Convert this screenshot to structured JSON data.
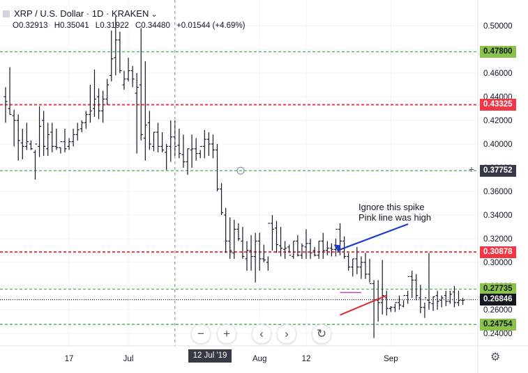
{
  "header": {
    "symbol": "XRP / U.S. Dollar · 1D · KRAKEN",
    "ohlc": [
      "O0.32913",
      "H0.35041",
      "L0.31922",
      "C0.34480",
      "+0.01544 (+4.69%)"
    ]
  },
  "annotation": {
    "line1": "Ignore this spike",
    "line2": "Pink line was high"
  },
  "toolbar": {
    "zoom_out": "−",
    "zoom_in": "+",
    "scroll_left": "‹",
    "scroll_right": "›",
    "reset": "↻"
  },
  "price_labels": [
    {
      "value": 0.478,
      "text": "0.47800",
      "bg": "#8bc34a",
      "fg": "#131722",
      "line": "#4caf50"
    },
    {
      "value": 0.43325,
      "text": "0.43325",
      "bg": "#f23645",
      "fg": "#ffffff",
      "line": "#f23645"
    },
    {
      "value": 0.37752,
      "text": "0.37752",
      "bg": "#363a45",
      "fg": "#ffffff",
      "line": "#4caf50"
    },
    {
      "value": 0.30878,
      "text": "0.30878",
      "bg": "#f23645",
      "fg": "#ffffff",
      "line": "#f23645"
    },
    {
      "value": 0.27735,
      "text": "0.27735",
      "bg": "#8bc34a",
      "fg": "#131722",
      "line": "#4caf50"
    },
    {
      "value": 0.26846,
      "text": "0.26846",
      "bg": "#131722",
      "fg": "#ffffff",
      "line": "#131722"
    },
    {
      "value": 0.24754,
      "text": "0.24754",
      "bg": "#8bc34a",
      "fg": "#131722",
      "line": "#4caf50"
    }
  ],
  "crosshair_date": "12 Jul '19",
  "chart_data": {
    "type": "ohlc",
    "title": "XRP / U.S. Dollar · 1D · KRAKEN",
    "ylim": [
      0.23,
      0.515
    ],
    "y_ticks": [
      0.24,
      0.26,
      0.28,
      0.3,
      0.32,
      0.34,
      0.36,
      0.38,
      0.4,
      0.42,
      0.44,
      0.46,
      0.48,
      0.5
    ],
    "y_tick_labels": [
      "0.24000",
      "0.26000",
      "0.28000",
      "0.30000",
      "0.32000",
      "0.34000",
      "0.36000",
      "0.38000",
      "0.40000",
      "0.42000",
      "0.44000",
      "0.46000",
      "0.48000",
      "0.50000"
    ],
    "x_tick_labels": [
      "17",
      "Jul",
      "Aug",
      "12",
      "Sep"
    ],
    "x_tick_dates": [
      "2019-06-17",
      "2019-07-01",
      "2019-08-01",
      "2019-08-12",
      "2019-09-01"
    ],
    "start_date": "2019-06-02",
    "highs": [
      0.448,
      0.465,
      0.429,
      0.425,
      0.413,
      0.418,
      0.403,
      0.395,
      0.432,
      0.428,
      0.418,
      0.418,
      0.413,
      0.397,
      0.413,
      0.405,
      0.413,
      0.418,
      0.42,
      0.428,
      0.45,
      0.463,
      0.447,
      0.445,
      0.455,
      0.496,
      0.508,
      0.495,
      0.462,
      0.473,
      0.466,
      0.46,
      0.498,
      0.47,
      0.428,
      0.41,
      0.418,
      0.41,
      0.4,
      0.42,
      0.42,
      0.413,
      0.408,
      0.396,
      0.408,
      0.405,
      0.395,
      0.412,
      0.41,
      0.408,
      0.4,
      0.367,
      0.346,
      0.338,
      0.336,
      0.333,
      0.33,
      0.318,
      0.323,
      0.325,
      0.325,
      0.315,
      0.305,
      0.34,
      0.335,
      0.33,
      0.318,
      0.315,
      0.318,
      0.323,
      0.316,
      0.328,
      0.32,
      0.313,
      0.318,
      0.325,
      0.318,
      0.316,
      0.32,
      0.333,
      0.322,
      0.308,
      0.303,
      0.313,
      0.305,
      0.308,
      0.303,
      0.285,
      0.285,
      0.302,
      0.276,
      0.263,
      0.265,
      0.272,
      0.268,
      0.276,
      0.293,
      0.29,
      0.281,
      0.266,
      0.308,
      0.271,
      0.276,
      0.272,
      0.276,
      0.276,
      0.28,
      0.276,
      0.27
    ],
    "lows": [
      0.418,
      0.425,
      0.398,
      0.386,
      0.387,
      0.395,
      0.395,
      0.37,
      0.389,
      0.39,
      0.39,
      0.393,
      0.395,
      0.392,
      0.393,
      0.395,
      0.398,
      0.403,
      0.41,
      0.413,
      0.418,
      0.423,
      0.421,
      0.418,
      0.433,
      0.453,
      0.458,
      0.46,
      0.446,
      0.453,
      0.448,
      0.392,
      0.403,
      0.386,
      0.395,
      0.394,
      0.393,
      0.393,
      0.378,
      0.385,
      0.39,
      0.388,
      0.38,
      0.374,
      0.38,
      0.386,
      0.388,
      0.388,
      0.39,
      0.388,
      0.36,
      0.34,
      0.308,
      0.303,
      0.303,
      0.318,
      0.303,
      0.293,
      0.293,
      0.283,
      0.293,
      0.3,
      0.293,
      0.31,
      0.308,
      0.305,
      0.303,
      0.308,
      0.303,
      0.305,
      0.303,
      0.303,
      0.303,
      0.305,
      0.303,
      0.303,
      0.306,
      0.305,
      0.305,
      0.306,
      0.303,
      0.293,
      0.288,
      0.29,
      0.286,
      0.286,
      0.283,
      0.236,
      0.25,
      0.256,
      0.255,
      0.258,
      0.258,
      0.26,
      0.262,
      0.265,
      0.27,
      0.268,
      0.257,
      0.253,
      0.26,
      0.259,
      0.26,
      0.262,
      0.263,
      0.265,
      0.262,
      0.263,
      0.264
    ],
    "opens": [
      0.44,
      0.43,
      0.424,
      0.42,
      0.401,
      0.398,
      0.4,
      0.393,
      0.398,
      0.42,
      0.396,
      0.41,
      0.398,
      0.397,
      0.402,
      0.398,
      0.402,
      0.408,
      0.413,
      0.418,
      0.425,
      0.43,
      0.44,
      0.428,
      0.438,
      0.458,
      0.473,
      0.488,
      0.45,
      0.455,
      0.462,
      0.443,
      0.45,
      0.405,
      0.418,
      0.398,
      0.41,
      0.398,
      0.393,
      0.398,
      0.406,
      0.399,
      0.391,
      0.385,
      0.395,
      0.396,
      0.392,
      0.398,
      0.404,
      0.4,
      0.395,
      0.362,
      0.34,
      0.318,
      0.308,
      0.328,
      0.318,
      0.303,
      0.31,
      0.305,
      0.318,
      0.303,
      0.3,
      0.333,
      0.329,
      0.314,
      0.311,
      0.313,
      0.305,
      0.318,
      0.306,
      0.313,
      0.316,
      0.31,
      0.306,
      0.318,
      0.31,
      0.312,
      0.311,
      0.328,
      0.318,
      0.305,
      0.296,
      0.303,
      0.296,
      0.3,
      0.29,
      0.282,
      0.268,
      0.266,
      0.27,
      0.261,
      0.262,
      0.266,
      0.263,
      0.272,
      0.288,
      0.285,
      0.27,
      0.262,
      0.268,
      0.265,
      0.272,
      0.268,
      0.272,
      0.267,
      0.275,
      0.266,
      0.268
    ],
    "closes": [
      0.436,
      0.425,
      0.42,
      0.403,
      0.398,
      0.402,
      0.396,
      0.4,
      0.415,
      0.398,
      0.408,
      0.398,
      0.397,
      0.402,
      0.396,
      0.402,
      0.408,
      0.412,
      0.418,
      0.425,
      0.428,
      0.438,
      0.428,
      0.438,
      0.45,
      0.472,
      0.488,
      0.462,
      0.455,
      0.462,
      0.455,
      0.448,
      0.408,
      0.416,
      0.4,
      0.41,
      0.398,
      0.395,
      0.398,
      0.406,
      0.398,
      0.392,
      0.385,
      0.396,
      0.396,
      0.392,
      0.398,
      0.404,
      0.4,
      0.395,
      0.362,
      0.342,
      0.318,
      0.31,
      0.328,
      0.32,
      0.305,
      0.31,
      0.305,
      0.318,
      0.303,
      0.302,
      0.333,
      0.328,
      0.315,
      0.312,
      0.312,
      0.306,
      0.318,
      0.306,
      0.314,
      0.316,
      0.308,
      0.306,
      0.318,
      0.31,
      0.312,
      0.311,
      0.328,
      0.318,
      0.305,
      0.296,
      0.303,
      0.296,
      0.3,
      0.29,
      0.282,
      0.268,
      0.266,
      0.272,
      0.261,
      0.262,
      0.266,
      0.264,
      0.272,
      0.288,
      0.285,
      0.272,
      0.262,
      0.27,
      0.266,
      0.271,
      0.267,
      0.27,
      0.267,
      0.273,
      0.266,
      0.268,
      0.268
    ],
    "crosshair": {
      "date": "2019-07-12",
      "price": 0.37752
    },
    "trendline": {
      "from": {
        "date": "2019-08-20",
        "price": 0.2555
      },
      "to": {
        "date": "2019-08-31",
        "price": 0.272
      }
    },
    "pink_line": {
      "from": {
        "date": "2019-08-20",
        "price": 0.2745
      },
      "to": {
        "date": "2019-08-25",
        "price": 0.2745
      }
    },
    "arrow_target": {
      "date": "2019-08-20",
      "price": 0.308
    }
  }
}
